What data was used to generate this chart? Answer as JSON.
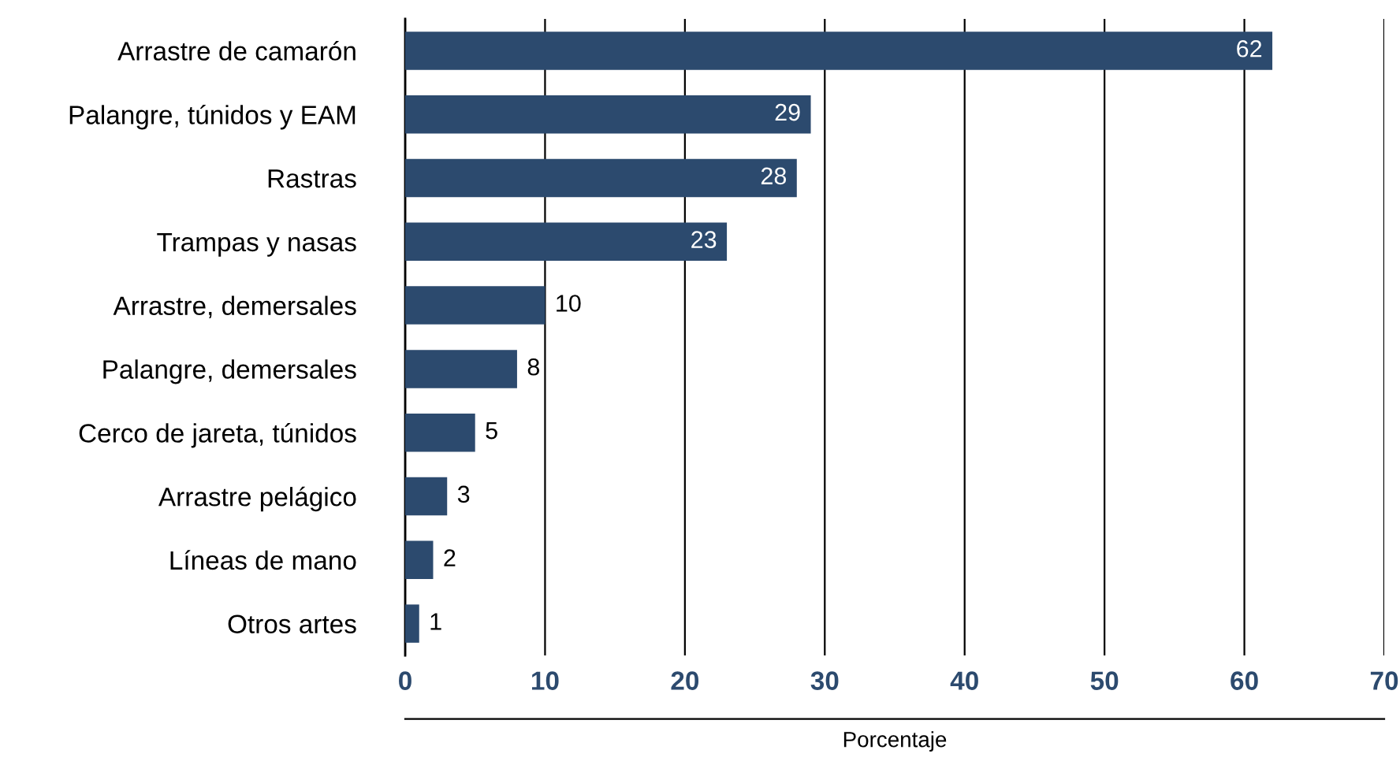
{
  "chart_data": {
    "type": "bar",
    "orientation": "horizontal",
    "xlabel": "Porcentaje",
    "categories": [
      "Arrastre de camarón",
      "Palangre, túnidos y EAM",
      "Rastras",
      "Trampas y nasas",
      "Arrastre, demersales",
      "Palangre, demersales",
      "Cerco de jareta, túnidos",
      "Arrastre pelágico",
      "Líneas de mano",
      "Otros artes"
    ],
    "values": [
      62,
      29,
      28,
      23,
      10,
      8,
      5,
      3,
      2,
      1
    ],
    "color": "#2c4a6e",
    "xlim": [
      0,
      70
    ],
    "xticks": [
      0,
      10,
      20,
      30,
      40,
      50,
      60,
      70
    ],
    "grid": "x",
    "data_labels": true
  }
}
